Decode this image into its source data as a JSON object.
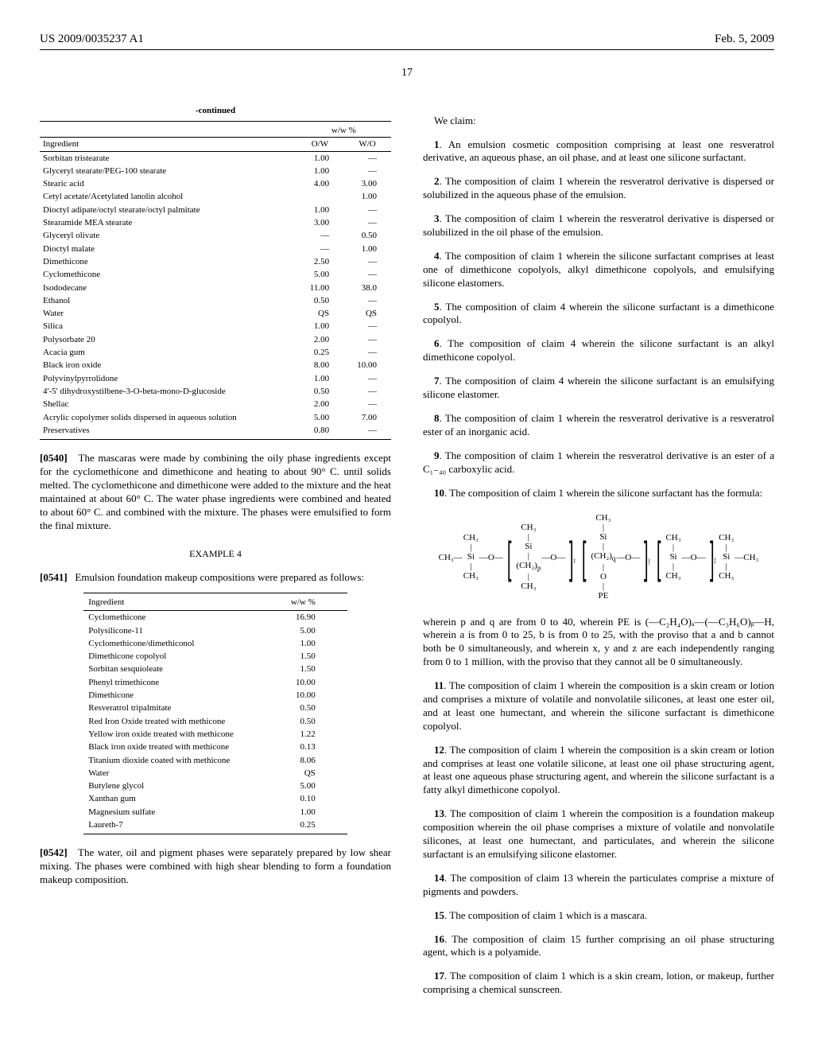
{
  "header": {
    "left": "US 2009/0035237 A1",
    "right": "Feb. 5, 2009",
    "page": "17"
  },
  "table1": {
    "caption": "-continued",
    "unit": "w/w %",
    "col_ing": "Ingredient",
    "col_ow": "O/W",
    "col_wo": "W/O",
    "rows": [
      [
        "Sorbitan tristearate",
        "1.00",
        "—"
      ],
      [
        "Glyceryl stearate/PEG-100 stearate",
        "1.00",
        "—"
      ],
      [
        "Stearic acid",
        "4.00",
        "3.00"
      ],
      [
        "Cetyl acetate/Acetylated lanolin alcohol",
        "",
        "1.00"
      ],
      [
        "Dioctyl adipate/octyl stearate/octyl palmitate",
        "1.00",
        "—"
      ],
      [
        "Stearamide MEA stearate",
        "3.00",
        "—"
      ],
      [
        "Glyceryl olivate",
        "—",
        "0.50"
      ],
      [
        "Dioctyl malate",
        "—",
        "1.00"
      ],
      [
        "Dimethicone",
        "2.50",
        "—"
      ],
      [
        "Cyclomethicone",
        "5.00",
        "—"
      ],
      [
        "Isododecane",
        "11.00",
        "38.0"
      ],
      [
        "Ethanol",
        "0.50",
        "—"
      ],
      [
        "Water",
        "QS",
        "QS"
      ],
      [
        "Silica",
        "1.00",
        "—"
      ],
      [
        "Polysorbate 20",
        "2.00",
        "—"
      ],
      [
        "Acacia gum",
        "0.25",
        "—"
      ],
      [
        "Black iron oxide",
        "8.00",
        "10.00"
      ],
      [
        "Polyvinylpyrrolidone",
        "1.00",
        "—"
      ],
      [
        "4'-5' dihydroxystilbene-3-O-beta-mono-D-glucoside",
        "0.50",
        "—"
      ],
      [
        "Shellac",
        "2.00",
        "—"
      ],
      [
        "Acrylic copolymer solids dispersed in aqueous solution",
        "5.00",
        "7.00"
      ],
      [
        "Preservatives",
        "0.80",
        "—"
      ]
    ]
  },
  "para540": {
    "num": "[0540]",
    "text": "The mascaras were made by combining the oily phase ingredients except for the cyclomethicone and dimethicone and heating to about 90° C. until solids melted. The cyclomethicone and dimethicone were added to the mixture and the heat maintained at about 60° C. The water phase ingredients were combined and heated to about 60° C. and combined with the mixture. The phases were emulsified to form the final mixture."
  },
  "example4": "EXAMPLE 4",
  "para541": {
    "num": "[0541]",
    "text": "Emulsion foundation makeup compositions were prepared as follows:"
  },
  "table2": {
    "col_ing": "Ingredient",
    "col_val": "w/w %",
    "rows": [
      [
        "Cyclomethicone",
        "16.90"
      ],
      [
        "Polysilicone-11",
        "5.00"
      ],
      [
        "Cyclomethicone/dimethiconol",
        "1.00"
      ],
      [
        "Dimethicone copolyol",
        "1.50"
      ],
      [
        "Sorbitan sesquioleate",
        "1.50"
      ],
      [
        "Phenyl trimethicone",
        "10.00"
      ],
      [
        "Dimethicone",
        "10.00"
      ],
      [
        "Resveratrol tripalmitate",
        "0.50"
      ],
      [
        "Red Iron Oxide treated with methicone",
        "0.50"
      ],
      [
        "Yellow iron oxide treated with methicone",
        "1.22"
      ],
      [
        "Black iron oxide treated with methicone",
        "0.13"
      ],
      [
        "Titanium dioxide coated with methicone",
        "8.06"
      ],
      [
        "Water",
        "QS"
      ],
      [
        "Butylene glycol",
        "5.00"
      ],
      [
        "Xanthan gum",
        "0.10"
      ],
      [
        "Magnesium sulfate",
        "1.00"
      ],
      [
        "Laureth-7",
        "0.25"
      ]
    ]
  },
  "para542": {
    "num": "[0542]",
    "text": "The water, oil and pigment phases were separately prepared by low shear mixing. The phases were combined with high shear blending to form a foundation makeup composition."
  },
  "weclaim": "We claim:",
  "claims": {
    "c1": {
      "n": "1",
      "t": ". An emulsion cosmetic composition comprising at least one resveratrol derivative, an aqueous phase, an oil phase, and at least one silicone surfactant."
    },
    "c2": {
      "n": "2",
      "t": ". The composition of claim 1 wherein the resveratrol derivative is dispersed or solubilized in the aqueous phase of the emulsion."
    },
    "c3": {
      "n": "3",
      "t": ". The composition of claim 1 wherein the resveratrol derivative is dispersed or solubilized in the oil phase of the emulsion."
    },
    "c4": {
      "n": "4",
      "t": ". The composition of claim 1 wherein the silicone surfactant comprises at least one of dimethicone copolyols, alkyl dimethicone copolyols, and emulsifying silicone elastomers."
    },
    "c5": {
      "n": "5",
      "t": ". The composition of claim 4 wherein the silicone surfactant is a dimethicone copolyol."
    },
    "c6": {
      "n": "6",
      "t": ". The composition of claim 4 wherein the silicone surfactant is an alkyl dimethicone copolyol."
    },
    "c7": {
      "n": "7",
      "t": ". The composition of claim 4 wherein the silicone surfactant is an emulsifying silicone elastomer."
    },
    "c8": {
      "n": "8",
      "t": ". The composition of claim 1 wherein the resveratrol derivative is a resveratrol ester of an inorganic acid."
    },
    "c9": {
      "n": "9",
      "t": ". The composition of claim 1 wherein the resveratrol derivative is an ester of a C₁₋₄₀ carboxylic acid."
    },
    "c10": {
      "n": "10",
      "t": ". The composition of claim 1 wherein the silicone surfactant has the formula:"
    },
    "c10b": "wherein p and q are from 0 to 40, wherein PE is (—C₂H₄O)ₐ—(—C₃H₆O)ᵦ—H, wherein a is from 0 to 25, b is from 0 to 25, with the proviso that a and b cannot both be 0 simultaneously, and wherein x, y and z are each independently ranging from 0 to 1 million, with the proviso that they cannot all be 0 simultaneously.",
    "c11": {
      "n": "11",
      "t": ". The composition of claim 1 wherein the composition is a skin cream or lotion and comprises a mixture of volatile and nonvolatile silicones, at least one ester oil, and at least one humectant, and wherein the silicone surfactant is dimethicone copolyol."
    },
    "c12": {
      "n": "12",
      "t": ". The composition of claim 1 wherein the composition is a skin cream or lotion and comprises at least one volatile silicone, at least one oil phase structuring agent, at least one aqueous phase structuring agent, and wherein the silicone surfactant is a fatty alkyl dimethicone copolyol."
    },
    "c13": {
      "n": "13",
      "t": ". The composition of claim 1 wherein the composition is a foundation makeup composition wherein the oil phase comprises a mixture of volatile and nonvolatile silicones, at least one humectant, and particulates, and wherein the silicone surfactant is an emulsifying silicone elastomer."
    },
    "c14": {
      "n": "14",
      "t": ". The composition of claim 13 wherein the particulates comprise a mixture of pigments and powders."
    },
    "c15": {
      "n": "15",
      "t": ". The composition of claim 1 which is a mascara."
    },
    "c16": {
      "n": "16",
      "t": ". The composition of claim 15 further comprising an oil phase structuring agent, which is a polyamide."
    },
    "c17": {
      "n": "17",
      "t": ". The composition of claim 1 which is a skin cream, lotion, or makeup, further comprising a chemical sunscreen."
    }
  }
}
